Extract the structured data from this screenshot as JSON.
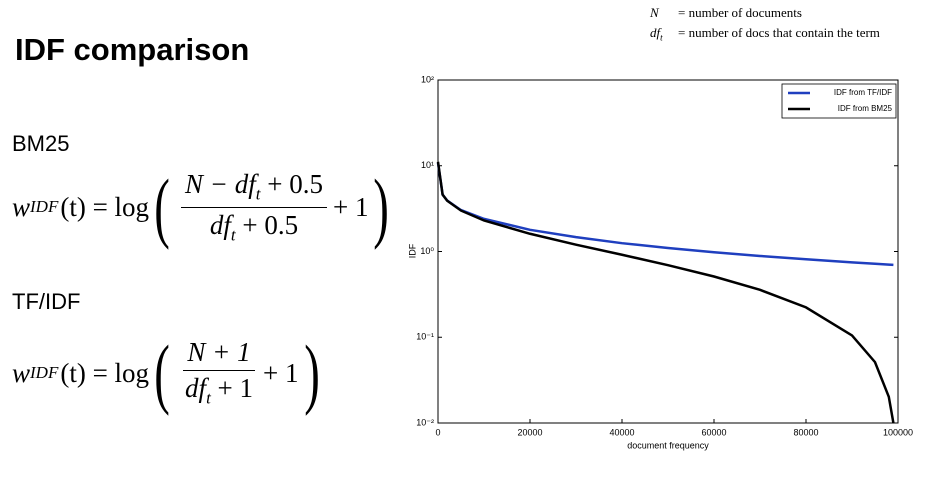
{
  "slide": {
    "title": "IDF comparison",
    "notation": [
      {
        "symbol": "N",
        "sub": "",
        "text": "= number of documents"
      },
      {
        "symbol": "df",
        "sub": "t",
        "text": "= number of docs that contain the term"
      }
    ],
    "sections": [
      {
        "heading": "BM25",
        "formula": {
          "lhs": "w",
          "sup": "IDF",
          "arg": "(t) = log",
          "num": "N − df",
          "num_sub": "t",
          "num_rest": " + 0.5",
          "den": "df",
          "den_sub": "t",
          "den_rest": " + 0.5",
          "tail": "+ 1"
        }
      },
      {
        "heading": "TF/IDF",
        "formula": {
          "lhs": "w",
          "sup": "IDF",
          "arg": "(t) = log",
          "num": "N + 1",
          "num_sub": "",
          "num_rest": "",
          "den": "df",
          "den_sub": "t",
          "den_rest": " + 1",
          "tail": "+ 1"
        }
      }
    ]
  },
  "chart_data": {
    "type": "line",
    "xlabel": "document frequency",
    "ylabel": "IDF",
    "x": [
      1,
      1000,
      2000,
      5000,
      10000,
      20000,
      30000,
      40000,
      50000,
      60000,
      70000,
      80000,
      90000,
      95000,
      98000,
      99000
    ],
    "series": [
      {
        "name": "IDF from TF/IDF",
        "color": "#1f3fbf",
        "values": [
          10.82,
          4.61,
          3.93,
          3.04,
          2.4,
          1.79,
          1.47,
          1.25,
          1.1,
          0.98,
          0.887,
          0.811,
          0.747,
          0.719,
          0.703,
          0.698
        ]
      },
      {
        "name": "IDF from BM25",
        "color": "#000000",
        "values": [
          11.11,
          4.6,
          3.91,
          3.0,
          2.3,
          1.61,
          1.2,
          0.916,
          0.693,
          0.511,
          0.357,
          0.223,
          0.105,
          0.0513,
          0.0202,
          0.01
        ]
      }
    ],
    "xlim": [
      0,
      100000
    ],
    "xticks": [
      0,
      20000,
      40000,
      60000,
      80000,
      100000
    ],
    "ylim": [
      0.01,
      100
    ],
    "log_y": true,
    "yticks": [
      {
        "value": 0.01,
        "label": "10⁻²"
      },
      {
        "value": 0.1,
        "label": "10⁻¹"
      },
      {
        "value": 1,
        "label": "10⁰"
      },
      {
        "value": 10,
        "label": "10¹"
      },
      {
        "value": 100,
        "label": "10²"
      }
    ],
    "legend": "upper right"
  }
}
